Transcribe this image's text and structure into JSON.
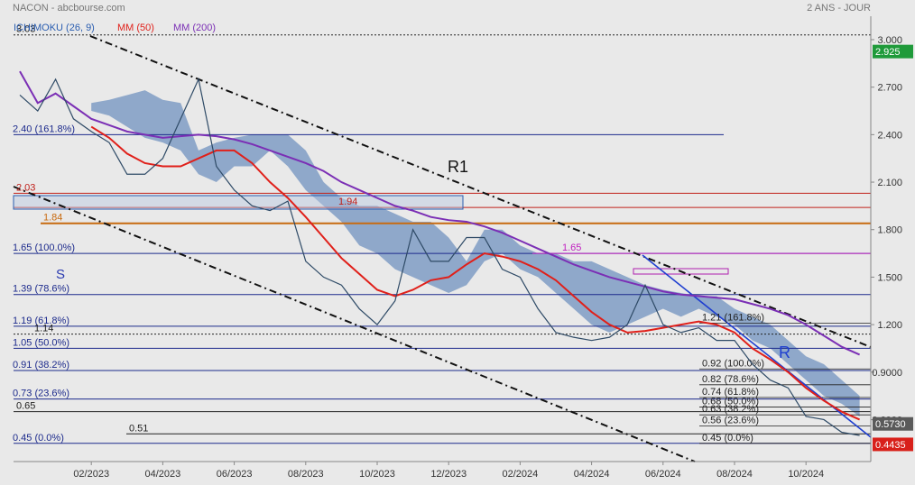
{
  "header": {
    "title": "NACON - abcbourse.com",
    "period": "2 ANS - JOUR"
  },
  "chart_data": {
    "type": "line",
    "categories": [
      null,
      null,
      null,
      null,
      "02/2023",
      null,
      null,
      null,
      "04/2023",
      null,
      null,
      null,
      "06/2023",
      null,
      null,
      null,
      "08/2023",
      null,
      null,
      null,
      "10/2023",
      null,
      null,
      null,
      "12/2023",
      null,
      null,
      null,
      "02/2024",
      null,
      null,
      null,
      "04/2024",
      null,
      null,
      null,
      "06/2024",
      null,
      null,
      null,
      "08/2024",
      null,
      null,
      null,
      "10/2024",
      null,
      null,
      null
    ],
    "ylim": [
      0.335,
      3.148
    ],
    "yticks": [
      {
        "value": 3,
        "label": "3.000"
      },
      {
        "value": 2.7,
        "label": "2.700"
      },
      {
        "value": 2.4,
        "label": "2.400"
      },
      {
        "value": 2.1,
        "label": "2.100"
      },
      {
        "value": 1.8,
        "label": "1.800"
      },
      {
        "value": 1.5,
        "label": "1.500"
      },
      {
        "value": 1.2,
        "label": "1.200"
      },
      {
        "value": 0.9,
        "label": "0.9000"
      },
      {
        "value": 0.6,
        "label": "0.6000"
      }
    ],
    "price": {
      "color": "#2e4a66",
      "values": [
        2.65,
        2.55,
        2.75,
        2.5,
        2.42,
        2.35,
        2.15,
        2.15,
        2.25,
        2.5,
        2.75,
        2.2,
        2.05,
        1.95,
        1.92,
        1.98,
        1.6,
        1.5,
        1.45,
        1.3,
        1.2,
        1.35,
        1.8,
        1.6,
        1.6,
        1.75,
        1.75,
        1.55,
        1.5,
        1.3,
        1.15,
        1.12,
        1.1,
        1.12,
        1.2,
        1.45,
        1.2,
        1.15,
        1.18,
        1.1,
        1.1,
        0.95,
        0.85,
        0.8,
        0.62,
        0.6,
        0.52,
        0.5
      ]
    },
    "ichimoku": {
      "name": "ICHIMOKU (26, 9)",
      "color": "#7f9cc4",
      "text_color": "#2a5db0",
      "upper": [
        null,
        null,
        null,
        null,
        2.6,
        2.62,
        2.65,
        2.68,
        2.62,
        2.6,
        2.3,
        2.35,
        2.38,
        2.4,
        2.4,
        2.4,
        2.3,
        2.1,
        2.0,
        1.95,
        1.95,
        1.9,
        1.85,
        1.85,
        1.75,
        1.6,
        1.8,
        1.8,
        1.7,
        1.65,
        1.65,
        1.6,
        1.6,
        1.55,
        1.5,
        1.45,
        1.42,
        1.4,
        1.38,
        1.38,
        1.3,
        1.25,
        1.2,
        1.1,
        1.0,
        0.95,
        0.85,
        0.75
      ],
      "lower": [
        null,
        null,
        null,
        null,
        2.55,
        2.52,
        2.45,
        2.38,
        2.35,
        2.3,
        2.15,
        2.1,
        2.2,
        2.2,
        2.3,
        2.2,
        2.05,
        1.95,
        1.85,
        1.7,
        1.65,
        1.55,
        1.5,
        1.45,
        1.4,
        1.45,
        1.6,
        1.65,
        1.55,
        1.5,
        1.4,
        1.3,
        1.2,
        1.15,
        1.2,
        1.25,
        1.3,
        1.25,
        1.3,
        1.25,
        1.2,
        1.1,
        1.05,
        0.95,
        0.85,
        0.75,
        0.7,
        0.62
      ]
    },
    "series": [
      {
        "name": "MM (50)",
        "color": "#e0201a",
        "values": [
          null,
          null,
          null,
          null,
          2.45,
          2.38,
          2.28,
          2.22,
          2.2,
          2.2,
          2.25,
          2.3,
          2.3,
          2.22,
          2.1,
          2.0,
          1.88,
          1.75,
          1.62,
          1.52,
          1.42,
          1.38,
          1.42,
          1.48,
          1.5,
          1.58,
          1.65,
          1.63,
          1.6,
          1.55,
          1.48,
          1.38,
          1.28,
          1.2,
          1.15,
          1.16,
          1.18,
          1.2,
          1.22,
          1.2,
          1.15,
          1.05,
          0.98,
          0.9,
          0.8,
          0.72,
          0.65,
          0.6
        ]
      },
      {
        "name": "MM (200)",
        "color": "#7b2fb5",
        "values": [
          2.8,
          2.6,
          2.66,
          2.58,
          2.5,
          2.46,
          2.42,
          2.4,
          2.38,
          2.39,
          2.4,
          2.39,
          2.37,
          2.34,
          2.3,
          2.26,
          2.22,
          2.17,
          2.1,
          2.05,
          2.0,
          1.95,
          1.92,
          1.88,
          1.86,
          1.85,
          1.82,
          1.78,
          1.73,
          1.68,
          1.63,
          1.58,
          1.54,
          1.5,
          1.47,
          1.44,
          1.41,
          1.39,
          1.38,
          1.37,
          1.36,
          1.33,
          1.3,
          1.26,
          1.2,
          1.13,
          1.06,
          1.01
        ]
      }
    ],
    "levels": [
      {
        "value": 3.03,
        "label": "3.03",
        "color": "#222222",
        "dashed": true
      },
      {
        "value": 2.4,
        "label": "2.40 (161.8%)",
        "color": "#1c2a8c",
        "dashed": false
      },
      {
        "value": 2.03,
        "label": "2.03",
        "color": "#c0201a",
        "dashed": false
      },
      {
        "value": 1.94,
        "label": "1.94",
        "color": "#c0201a",
        "dashed": false
      },
      {
        "value": 1.84,
        "label": "1.84",
        "color": "#c86a10",
        "dashed": false
      },
      {
        "value": 1.65,
        "label": "1.65 (100.0%)",
        "color": "#1c2a8c",
        "dashed": false
      },
      {
        "value": 1.65,
        "label": "1.65",
        "color": "#c020c0",
        "dashed": false
      },
      {
        "value": 1.39,
        "label": "1.39 (78.6%)",
        "color": "#1c2a8c",
        "dashed": false
      },
      {
        "value": 1.19,
        "label": "1.19 (61.8%)",
        "color": "#1c2a8c",
        "dashed": false
      },
      {
        "value": 1.14,
        "label": "1.14",
        "color": "#222222",
        "dashed": true
      },
      {
        "value": 1.05,
        "label": "1.05 (50.0%)",
        "color": "#1c2a8c",
        "dashed": false
      },
      {
        "value": 0.91,
        "label": "0.91 (38.2%)",
        "color": "#1c2a8c",
        "dashed": false
      },
      {
        "value": 0.73,
        "label": "0.73 (23.6%)",
        "color": "#1c2a8c",
        "dashed": false
      },
      {
        "value": 0.65,
        "label": "0.65",
        "color": "#222222",
        "dashed": false
      },
      {
        "value": 0.51,
        "label": "0.51",
        "color": "#222222",
        "dashed": false
      },
      {
        "value": 0.45,
        "label": "0.45 (0.0%)",
        "color": "#1c2a8c",
        "dashed": false
      }
    ],
    "right_levels": [
      {
        "value": 1.21,
        "label": "1.21 (161.8%)",
        "color": "#222222"
      },
      {
        "value": 0.92,
        "label": "0.92 (100.0%)",
        "color": "#222222"
      },
      {
        "value": 0.82,
        "label": "0.82 (78.6%)",
        "color": "#222222"
      },
      {
        "value": 0.74,
        "label": "0.74 (61.8%)",
        "color": "#222222"
      },
      {
        "value": 0.68,
        "label": "0.68 (50.0%)",
        "color": "#222222"
      },
      {
        "value": 0.63,
        "label": "0.63 (38.2%)",
        "color": "#222222"
      },
      {
        "value": 0.56,
        "label": "0.56 (23.6%)",
        "color": "#222222"
      },
      {
        "value": 0.45,
        "label": "0.45 (0.0%)",
        "color": "#222222"
      }
    ],
    "price_tags": [
      {
        "value": 2.925,
        "label": "2.925",
        "color": "#1f9a3a"
      },
      {
        "value": 0.573,
        "label": "0.5730",
        "color": "#5a5a5a"
      },
      {
        "value": 0.4435,
        "label": "0.4435",
        "color": "#d8201a"
      }
    ],
    "annotations": {
      "channel": "R1",
      "support": "S",
      "resistance": "R"
    }
  }
}
